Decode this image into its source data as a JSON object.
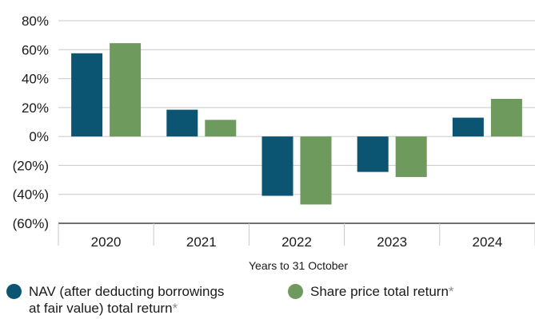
{
  "chart_data": {
    "type": "bar",
    "categories": [
      "2020",
      "2021",
      "2022",
      "2023",
      "2024"
    ],
    "series": [
      {
        "name": "NAV (after deducting borrowings at fair value) total return*",
        "values": [
          57.5,
          18.5,
          -41.0,
          -24.5,
          13.0
        ],
        "color": "#0b5572"
      },
      {
        "name": "Share price total return*",
        "values": [
          64.5,
          11.5,
          -47.0,
          -28.0,
          26.0
        ],
        "color": "#6f9a5e"
      }
    ],
    "y_ticks": [
      80,
      60,
      40,
      20,
      0,
      -20,
      -40,
      -60
    ],
    "y_tick_labels": [
      "80%",
      "60%",
      "40%",
      "20%",
      "0%",
      "(20%)",
      "(40%)",
      "(60%)"
    ],
    "ylim": [
      -60,
      80
    ],
    "xlabel": "Years to 31 October",
    "ylabel": "",
    "grid": "horizontal",
    "legend_position": "bottom"
  },
  "legend": {
    "nav_line1": "NAV (after deducting borrowings",
    "nav_line2": "at fair value) total return",
    "share": "Share price total return",
    "asterisk": "*"
  }
}
